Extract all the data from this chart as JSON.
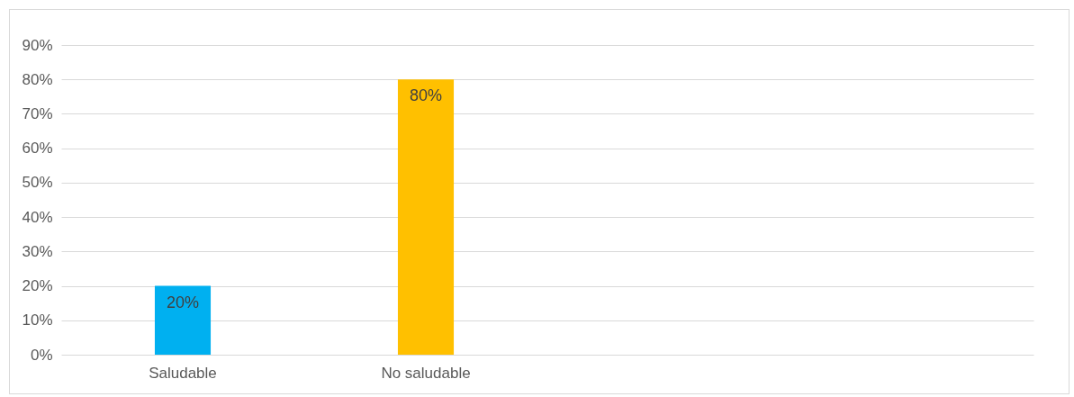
{
  "chart_data": {
    "type": "bar",
    "categories": [
      "Saludable",
      "No saludable",
      null,
      null
    ],
    "values": [
      20,
      80,
      null,
      null
    ],
    "colors": [
      "#00b0f0",
      "#ffc000",
      null,
      null
    ],
    "value_labels": [
      "20%",
      "80%",
      null,
      null
    ],
    "ylim": [
      0,
      90
    ],
    "yticks": [
      {
        "value": 0,
        "label": "0%"
      },
      {
        "value": 10,
        "label": "10%"
      },
      {
        "value": 20,
        "label": "20%"
      },
      {
        "value": 30,
        "label": "30%"
      },
      {
        "value": 40,
        "label": "40%"
      },
      {
        "value": 50,
        "label": "50%"
      },
      {
        "value": 60,
        "label": "60%"
      },
      {
        "value": 70,
        "label": "70%"
      },
      {
        "value": 80,
        "label": "80%"
      },
      {
        "value": 90,
        "label": "90%"
      }
    ],
    "grid": "y"
  }
}
